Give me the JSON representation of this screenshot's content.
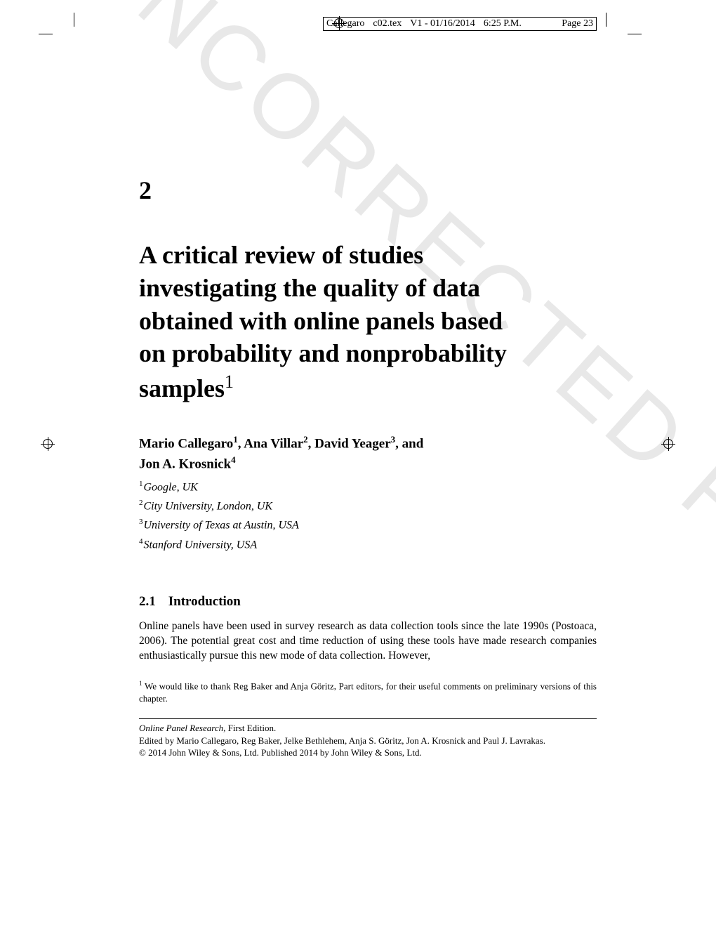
{
  "header": {
    "author": "Callegaro",
    "file": "c02.tex",
    "version": "V1 - 01/16/2014",
    "time": "6:25 P.M.",
    "page": "Page 23"
  },
  "watermark": "UNCORRECTED PROOFS",
  "chapter": {
    "number": "2",
    "title_line1": "A critical review of studies",
    "title_line2": "investigating the quality of data",
    "title_line3": "obtained with online panels based",
    "title_line4": "on probability and nonprobability",
    "title_line5": "samples",
    "title_sup": "1"
  },
  "authors": {
    "line1_a": "Mario Callegaro",
    "line1_a_sup": "1",
    "line1_b": ", Ana Villar",
    "line1_b_sup": "2",
    "line1_c": ", David Yeager",
    "line1_c_sup": "3",
    "line1_d": ", and",
    "line2_a": "Jon A. Krosnick",
    "line2_a_sup": "4"
  },
  "affiliations": [
    {
      "sup": "1",
      "text": "Google, UK"
    },
    {
      "sup": "2",
      "text": "City University, London, UK"
    },
    {
      "sup": "3",
      "text": "University of Texas at Austin, USA"
    },
    {
      "sup": "4",
      "text": "Stanford University, USA"
    }
  ],
  "section": {
    "number": "2.1",
    "title": "Introduction"
  },
  "body": "Online panels have been used in survey research as data collection tools since the late 1990s (Postoaca, 2006). The potential great cost and time reduction of using these tools have made research companies enthusiastically pursue this new mode of data collection. However,",
  "footnote": {
    "sup": "1",
    "text": " We would like to thank Reg Baker and Anja Göritz, Part editors, for their useful comments on preliminary versions of this chapter."
  },
  "pub": {
    "title": "Online Panel Research",
    "edition": ", First Edition.",
    "editors": "Edited by Mario Callegaro, Reg Baker, Jelke Bethlehem, Anja S. Göritz, Jon A. Krosnick and Paul J. Lavrakas.",
    "copyright": "© 2014 John Wiley & Sons, Ltd. Published 2014 by John Wiley & Sons, Ltd."
  }
}
